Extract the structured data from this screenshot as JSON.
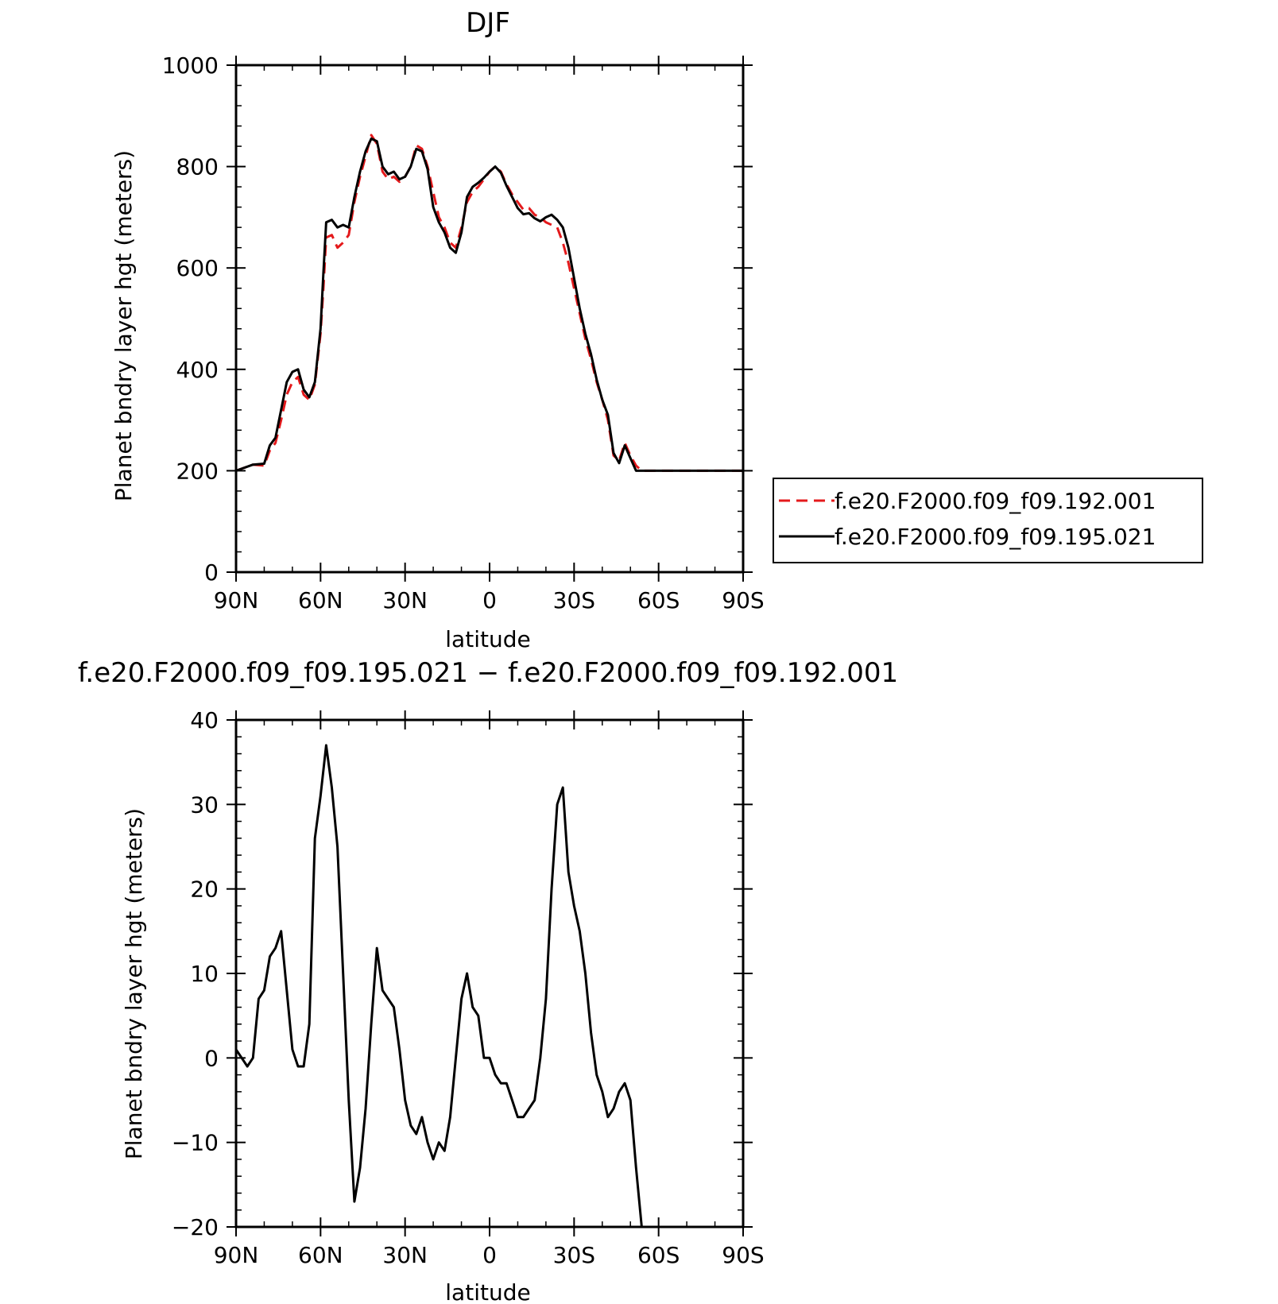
{
  "chart_data": [
    {
      "type": "line",
      "title": "DJF",
      "xlabel": "latitude",
      "ylabel": "Planet bndry layer hgt (meters)",
      "xlim": [
        90,
        -90
      ],
      "ylim": [
        0,
        1000
      ],
      "xticks": [
        {
          "value": 90,
          "label": "90N"
        },
        {
          "value": 60,
          "label": "60N"
        },
        {
          "value": 30,
          "label": "30N"
        },
        {
          "value": 0,
          "label": "0"
        },
        {
          "value": -30,
          "label": "30S"
        },
        {
          "value": -60,
          "label": "60S"
        },
        {
          "value": -90,
          "label": "90S"
        }
      ],
      "yticks": [
        {
          "value": 0,
          "label": "0"
        },
        {
          "value": 200,
          "label": "200"
        },
        {
          "value": 400,
          "label": "400"
        },
        {
          "value": 600,
          "label": "600"
        },
        {
          "value": 800,
          "label": "800"
        },
        {
          "value": 1000,
          "label": "1000"
        }
      ],
      "legend_position": "right",
      "series": [
        {
          "name": "f.e20.F2000.f09_f09.192.001",
          "color": "#e41a1c",
          "dash": "dashed",
          "x": [
            90,
            84,
            80,
            78,
            76,
            74,
            72,
            70,
            68,
            66,
            64,
            62,
            60,
            59,
            58,
            56,
            54,
            52,
            50,
            48,
            46,
            44,
            42,
            40,
            38,
            36,
            34,
            32,
            30,
            28,
            26,
            24,
            22,
            20,
            18,
            16,
            14,
            12,
            10,
            8,
            6,
            4,
            2,
            0,
            -2,
            -4,
            -6,
            -8,
            -10,
            -12,
            -14,
            -16,
            -18,
            -20,
            -22,
            -24,
            -26,
            -28,
            -30,
            -32,
            -34,
            -36,
            -38,
            -40,
            -42,
            -44,
            -46,
            -48,
            -50,
            -52,
            -54,
            -56,
            -58,
            -60,
            -62,
            -64,
            -66,
            -68,
            -70,
            -72,
            -74,
            -76,
            -78,
            -80,
            -82,
            -84,
            -86,
            -88,
            -90
          ],
          "y": [
            200,
            212,
            210,
            240,
            255,
            300,
            350,
            375,
            385,
            350,
            340,
            370,
            470,
            560,
            660,
            665,
            640,
            650,
            665,
            730,
            780,
            820,
            862,
            845,
            790,
            775,
            780,
            770,
            780,
            800,
            842,
            835,
            800,
            750,
            700,
            680,
            650,
            640,
            680,
            730,
            750,
            760,
            775,
            790,
            800,
            790,
            765,
            745,
            730,
            715,
            718,
            705,
            700,
            690,
            685,
            680,
            650,
            610,
            560,
            510,
            460,
            420,
            375,
            340,
            300,
            230,
            220,
            255,
            230,
            210,
            200,
            200,
            200,
            200,
            200,
            200,
            200,
            200,
            200,
            200,
            200,
            200,
            200,
            200,
            200,
            200,
            200,
            200,
            200
          ]
        },
        {
          "name": "f.e20.F2000.f09_f09.195.021",
          "color": "#000000",
          "dash": "solid",
          "x": [
            90,
            84,
            80,
            78,
            76,
            74,
            72,
            70,
            68,
            66,
            64,
            62,
            60,
            59,
            58,
            56,
            54,
            52,
            50,
            48,
            46,
            44,
            42,
            40,
            38,
            36,
            34,
            32,
            30,
            28,
            26,
            24,
            22,
            20,
            18,
            16,
            14,
            12,
            10,
            8,
            6,
            4,
            2,
            0,
            -2,
            -4,
            -6,
            -8,
            -10,
            -12,
            -14,
            -16,
            -18,
            -20,
            -22,
            -24,
            -26,
            -28,
            -30,
            -32,
            -34,
            -36,
            -38,
            -40,
            -42,
            -44,
            -46,
            -48,
            -50,
            -52,
            -54,
            -56,
            -58,
            -60,
            -62,
            -64,
            -66,
            -68,
            -70,
            -72,
            -74,
            -76,
            -78,
            -80,
            -82,
            -84,
            -86,
            -88,
            -90
          ],
          "y": [
            200,
            212,
            214,
            250,
            265,
            320,
            375,
            395,
            400,
            360,
            345,
            375,
            480,
            590,
            690,
            695,
            680,
            685,
            680,
            740,
            790,
            830,
            855,
            850,
            800,
            785,
            790,
            775,
            780,
            800,
            835,
            830,
            795,
            720,
            690,
            670,
            640,
            630,
            670,
            740,
            760,
            768,
            778,
            790,
            800,
            788,
            762,
            740,
            718,
            706,
            708,
            698,
            692,
            700,
            705,
            695,
            680,
            640,
            580,
            520,
            470,
            430,
            380,
            340,
            310,
            235,
            215,
            250,
            225,
            200,
            200,
            200,
            200,
            200,
            200,
            200,
            200,
            200,
            200,
            200,
            200,
            200,
            200,
            200,
            200,
            200,
            200,
            200,
            200
          ]
        }
      ]
    },
    {
      "type": "line",
      "title": "f.e20.F2000.f09_f09.195.021 − f.e20.F2000.f09_f09.192.001",
      "xlabel": "latitude",
      "ylabel": "Planet bndry layer hgt (meters)",
      "xlim": [
        90,
        -90
      ],
      "ylim": [
        -20,
        40
      ],
      "xticks": [
        {
          "value": 90,
          "label": "90N"
        },
        {
          "value": 60,
          "label": "60N"
        },
        {
          "value": 30,
          "label": "30N"
        },
        {
          "value": 0,
          "label": "0"
        },
        {
          "value": -30,
          "label": "30S"
        },
        {
          "value": -60,
          "label": "60S"
        },
        {
          "value": -90,
          "label": "90S"
        }
      ],
      "yticks": [
        {
          "value": -20,
          "label": "−20"
        },
        {
          "value": -10,
          "label": "−10"
        },
        {
          "value": 0,
          "label": "0"
        },
        {
          "value": 10,
          "label": "10"
        },
        {
          "value": 20,
          "label": "20"
        },
        {
          "value": 30,
          "label": "30"
        },
        {
          "value": 40,
          "label": "40"
        }
      ],
      "series": [
        {
          "color": "#000000",
          "dash": "solid",
          "x": [
            90,
            88,
            86,
            84,
            82,
            80,
            78,
            76,
            74,
            72,
            70,
            68,
            66,
            64,
            62,
            60,
            58,
            56,
            54,
            52,
            50,
            48,
            46,
            44,
            42,
            40,
            38,
            36,
            34,
            32,
            30,
            28,
            26,
            24,
            22,
            20,
            18,
            16,
            14,
            12,
            10,
            8,
            6,
            4,
            2,
            0,
            -2,
            -4,
            -6,
            -8,
            -10,
            -12,
            -14,
            -16,
            -18,
            -20,
            -22,
            -24,
            -26,
            -28,
            -30,
            -32,
            -34,
            -36,
            -38,
            -40,
            -42,
            -44,
            -46,
            -48,
            -50,
            -52,
            -54,
            -56,
            -58,
            -60,
            -62,
            -64,
            -66,
            -68,
            -70,
            -72,
            -74,
            -76,
            -78,
            -80,
            -82,
            -84,
            -86,
            -88,
            -90
          ],
          "y": [
            1,
            0,
            -1,
            0,
            7,
            8,
            12,
            13,
            15,
            8,
            1,
            -1,
            -1,
            4,
            26,
            31,
            37,
            32,
            25,
            10,
            -5,
            -17,
            -13,
            -6,
            4,
            13,
            8,
            7,
            6,
            1,
            -5,
            -8,
            -9,
            -7,
            -10,
            -12,
            -10,
            -11,
            -7,
            0,
            7,
            10,
            6,
            5,
            0,
            0,
            -2,
            -3,
            -3,
            -5,
            -7,
            -7,
            -6,
            -5,
            0,
            7,
            20,
            30,
            32,
            22,
            18,
            15,
            10,
            3,
            -2,
            -4,
            -7,
            -6,
            -4,
            -3,
            -5,
            -13,
            -20,
            -20,
            -20,
            -20,
            -20,
            -20,
            -20,
            -20,
            -20,
            -20,
            -20,
            -20,
            -20,
            -20,
            -20,
            -20,
            -20,
            -20,
            -20
          ]
        }
      ]
    }
  ]
}
